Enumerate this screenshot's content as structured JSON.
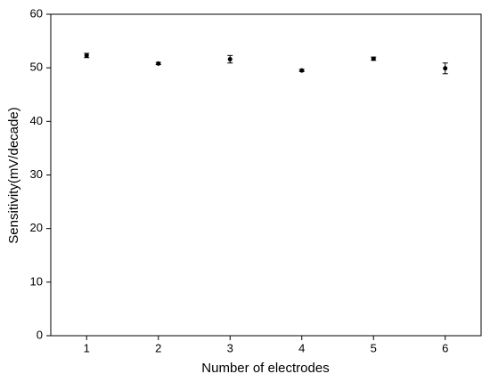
{
  "chart_data": {
    "type": "scatter",
    "x_label": "Number of electrodes",
    "y_label": "Sensitivity(mV/decade)",
    "x": [
      1,
      2,
      3,
      4,
      5,
      6
    ],
    "values": [
      52.3,
      50.8,
      51.6,
      49.5,
      51.7,
      49.9
    ],
    "errors": [
      0.4,
      0.2,
      0.7,
      0.2,
      0.3,
      1.0
    ],
    "color": "#000000",
    "xlim": [
      0.5,
      6.5
    ],
    "xticks": [
      1,
      2,
      3,
      4,
      5,
      6
    ],
    "ylim": [
      0,
      60
    ],
    "yticks": [
      0,
      10,
      20,
      30,
      40,
      50,
      60
    ]
  }
}
